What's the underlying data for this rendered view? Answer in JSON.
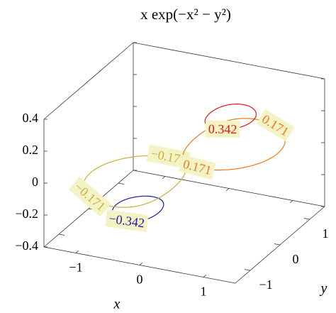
{
  "chart_data": {
    "type": "contour3d",
    "title": "x exp(−x² − y²)",
    "x_label": "x",
    "y_label": "y",
    "xlim": [
      -1.5,
      1.5
    ],
    "ylim": [
      -1.5,
      1.5
    ],
    "zlim": [
      -0.4,
      0.4
    ],
    "xticks": [
      {
        "value": -1,
        "label": "−1"
      },
      0,
      1
    ],
    "yticks": [
      {
        "value": -1,
        "label": "−1"
      },
      0,
      1
    ],
    "zticks": [
      {
        "value": -0.4,
        "label": "−0.4"
      },
      {
        "value": -0.2,
        "label": "−0.2"
      },
      0,
      0.2,
      0.4
    ],
    "values": [
      -0.342,
      -0.171,
      0.171,
      0.342
    ],
    "value_labels": [
      "−0.342",
      "−0.171",
      "0.171",
      "0.342"
    ],
    "colors": [
      "#1c1ca8",
      "#c9b23c",
      "#f07a1e",
      "#e01818"
    ]
  }
}
